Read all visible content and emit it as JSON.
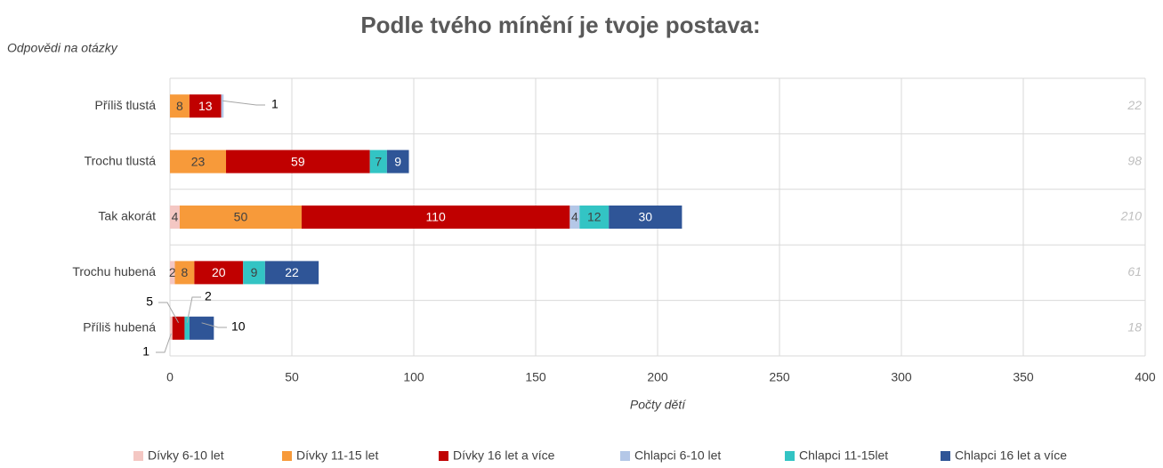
{
  "chart_data": {
    "type": "stacked_barh",
    "title": "Podle tvého mínění je tvoje postava:",
    "y_label": "Odpovědi na otázky",
    "x_label": "Počty dětí",
    "categories": [
      "Příliš tlustá",
      "Trochu tlustá",
      "Tak akorát",
      "Trochu hubená",
      "Příliš hubená"
    ],
    "series": [
      {
        "name": "Dívky 6-10 let",
        "color": "#f4c7c3",
        "values": [
          null,
          null,
          4,
          2,
          1
        ]
      },
      {
        "name": "Dívky 11-15 let",
        "color": "#f79a3a",
        "values": [
          8,
          23,
          50,
          8,
          null
        ]
      },
      {
        "name": "Dívky 16 let a více",
        "color": "#c00000",
        "values": [
          13,
          59,
          110,
          20,
          5
        ]
      },
      {
        "name": "Chlapci 6-10 let",
        "color": "#b4c7e7",
        "values": [
          1,
          null,
          4,
          null,
          null
        ]
      },
      {
        "name": "Chlapci 11-15let",
        "color": "#33c4c4",
        "values": [
          null,
          7,
          12,
          9,
          2
        ]
      },
      {
        "name": "Chlapci 16 let a více",
        "color": "#2f5597",
        "values": [
          null,
          9,
          30,
          22,
          10
        ]
      }
    ],
    "totals": [
      22,
      98,
      210,
      61,
      18
    ],
    "xlim": [
      0,
      400
    ],
    "xticks": [
      0,
      50,
      100,
      150,
      200,
      250,
      300,
      350,
      400
    ],
    "grid": true,
    "legend": "bottom"
  }
}
